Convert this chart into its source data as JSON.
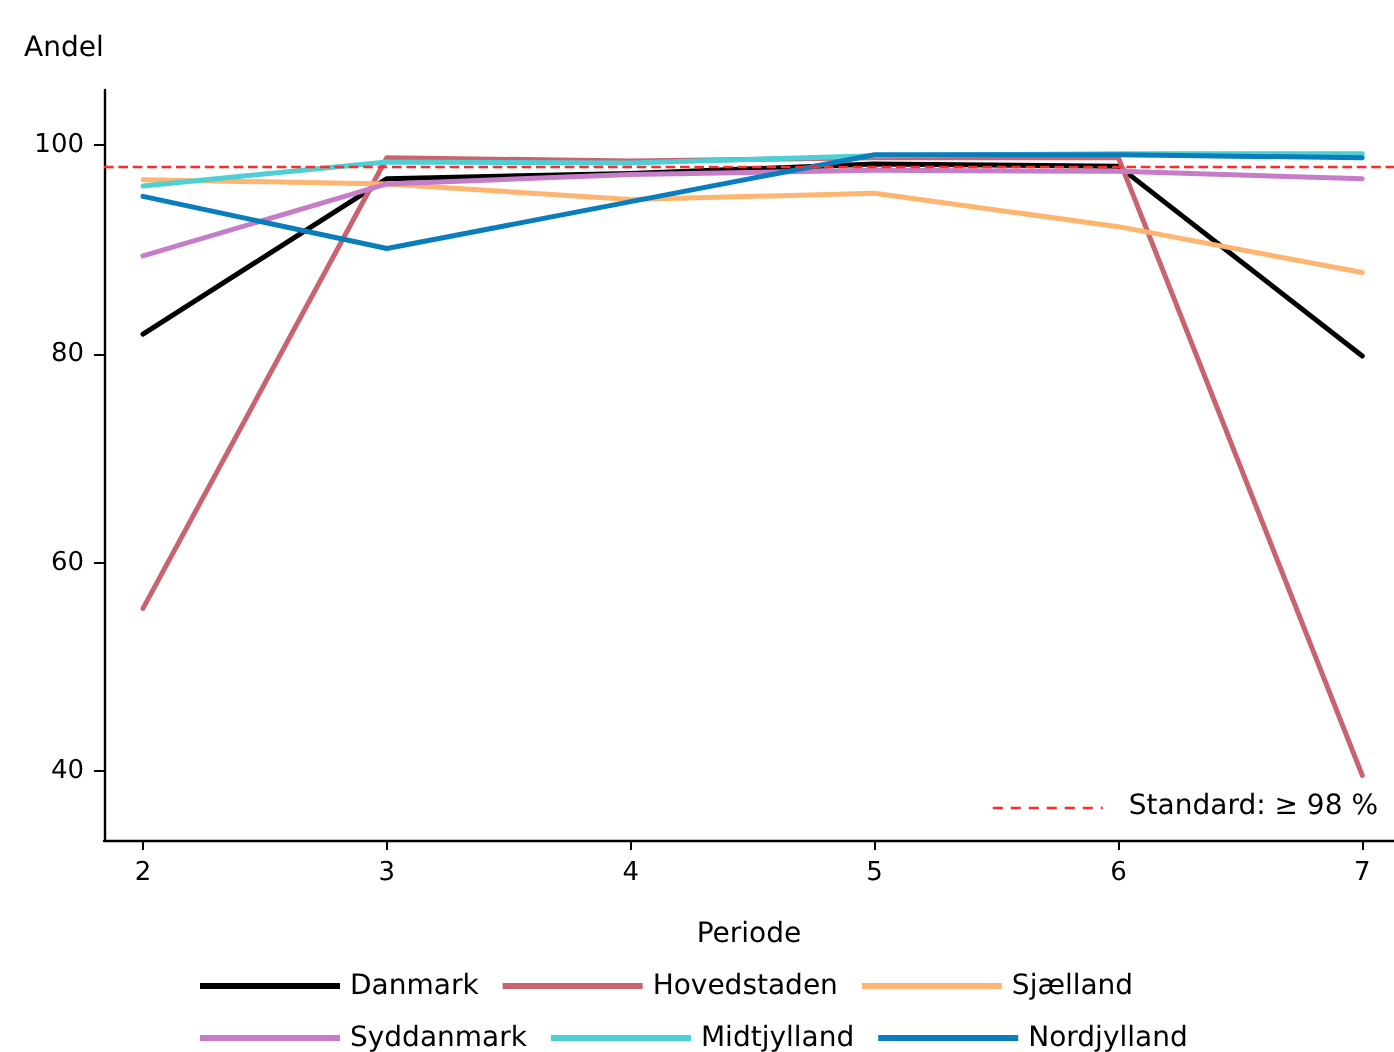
{
  "chart_data": {
    "type": "line",
    "xlabel": "Periode",
    "ylabel": "Andel",
    "x": [
      2,
      3,
      4,
      5,
      6,
      7
    ],
    "xlim": [
      1.84,
      7.13
    ],
    "xticks": [
      2,
      3,
      4,
      5,
      6,
      7
    ],
    "ylim": [
      33.4,
      105.3
    ],
    "yticks": [
      40,
      60,
      80,
      100
    ],
    "grid": false,
    "legend": "bottom",
    "marker": "none",
    "line_style": "solid",
    "series": [
      {
        "name": "Danmark",
        "color": "#000000",
        "values": [
          81.9,
          96.8,
          97.3,
          98.2,
          98.0,
          79.8
        ]
      },
      {
        "name": "Hovedstaden",
        "color": "#c9636f",
        "values": [
          55.6,
          98.8,
          98.5,
          98.8,
          98.8,
          39.6
        ]
      },
      {
        "name": "Sjælland",
        "color": "#fdb56f",
        "values": [
          96.7,
          96.3,
          94.8,
          95.4,
          92.2,
          87.8
        ]
      },
      {
        "name": "Syddanmark",
        "color": "#c57dc8",
        "values": [
          89.4,
          96.3,
          97.2,
          97.6,
          97.5,
          96.8
        ]
      },
      {
        "name": "Midtjylland",
        "color": "#4dcfd6",
        "values": [
          96.1,
          98.4,
          98.3,
          99.0,
          99.2,
          99.2
        ]
      },
      {
        "name": "Nordjylland",
        "color": "#0a7dbd",
        "values": [
          95.1,
          90.1,
          94.6,
          99.1,
          99.1,
          98.8
        ]
      }
    ],
    "ref_lines": [
      {
        "axis": "y",
        "value": 98,
        "label": "Standard: ≥ 98 %",
        "color": "#ff2a2a",
        "line_style": "dashed"
      }
    ]
  }
}
